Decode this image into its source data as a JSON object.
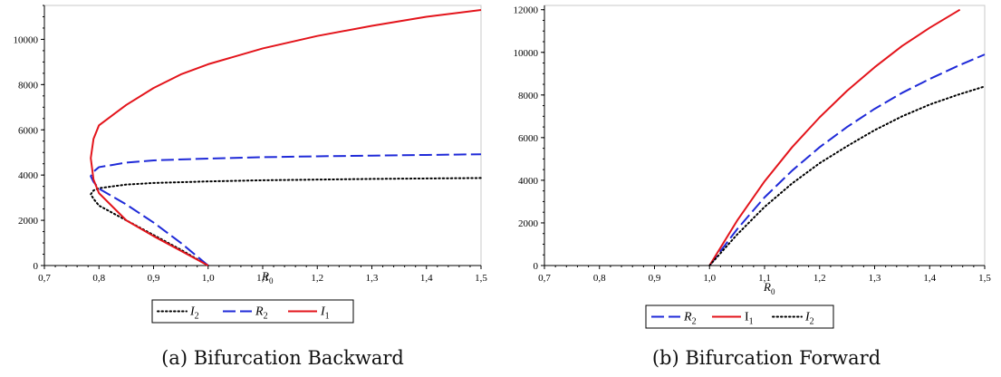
{
  "chart_data": [
    {
      "type": "line",
      "caption": "(a) Bifurcation Backward",
      "xlabel": "R",
      "xlabel_sub": "0",
      "xlim": [
        0.7,
        1.5
      ],
      "ylim": [
        0,
        11500
      ],
      "xticks": [
        0.7,
        0.8,
        0.9,
        1.0,
        1.1,
        1.2,
        1.3,
        1.4,
        1.5
      ],
      "xtick_labels": [
        "0,7",
        "0,8",
        "0,9",
        "1,0",
        "1,1",
        "1,2",
        "1,3",
        "1,4",
        "1,5"
      ],
      "yticks": [
        0,
        2000,
        4000,
        6000,
        8000,
        10000
      ],
      "ytick_labels": [
        "0",
        "2000",
        "4000",
        "6000",
        "8000",
        "10000"
      ],
      "legend": [
        {
          "base": "I",
          "sub": "2",
          "series": "I2"
        },
        {
          "base": "R",
          "sub": "2",
          "series": "R2"
        },
        {
          "base": "I",
          "sub": "1",
          "series": "I1"
        }
      ],
      "series": [
        {
          "key": "I2",
          "color": "#000000",
          "style": "dotted",
          "x": [
            1.0,
            0.95,
            0.9,
            0.85,
            0.8,
            0.79,
            0.785,
            0.79,
            0.8,
            0.85,
            0.9,
            1.0,
            1.1,
            1.2,
            1.3,
            1.4,
            1.5
          ],
          "y": [
            0,
            700,
            1350,
            2000,
            2650,
            2950,
            3150,
            3320,
            3420,
            3580,
            3650,
            3720,
            3770,
            3800,
            3830,
            3850,
            3870
          ]
        },
        {
          "key": "R2",
          "color": "#1f2ad8",
          "style": "dashed",
          "x": [
            1.0,
            0.95,
            0.9,
            0.85,
            0.8,
            0.79,
            0.785,
            0.79,
            0.8,
            0.85,
            0.9,
            1.0,
            1.1,
            1.2,
            1.3,
            1.4,
            1.5
          ],
          "y": [
            0,
            1000,
            1900,
            2700,
            3400,
            3700,
            3950,
            4150,
            4350,
            4550,
            4650,
            4730,
            4790,
            4830,
            4860,
            4890,
            4920
          ]
        },
        {
          "key": "I1",
          "color": "#e3141b",
          "style": "solid",
          "x": [
            1.0,
            0.95,
            0.9,
            0.85,
            0.8,
            0.79,
            0.785,
            0.79,
            0.8,
            0.85,
            0.9,
            0.95,
            1.0,
            1.1,
            1.2,
            1.3,
            1.4,
            1.5
          ],
          "y": [
            0,
            650,
            1300,
            2000,
            3200,
            3800,
            4750,
            5600,
            6200,
            7100,
            7850,
            8450,
            8900,
            9600,
            10150,
            10600,
            11000,
            11300
          ]
        }
      ]
    },
    {
      "type": "line",
      "caption": "(b) Bifurcation Forward",
      "xlabel": "R",
      "xlabel_sub": "0",
      "xlim": [
        0.7,
        1.5
      ],
      "ylim": [
        0,
        12200
      ],
      "xticks": [
        0.7,
        0.8,
        0.9,
        1.0,
        1.1,
        1.2,
        1.3,
        1.4,
        1.5
      ],
      "xtick_labels": [
        "0,7",
        "0,8",
        "0,9",
        "1,0",
        "1,1",
        "1,2",
        "1,3",
        "1,4",
        "1,5"
      ],
      "yticks": [
        0,
        2000,
        4000,
        6000,
        8000,
        10000,
        12000
      ],
      "ytick_labels": [
        "0",
        "2000",
        "4000",
        "6000",
        "8000",
        "10000",
        "12000"
      ],
      "legend": [
        {
          "base": "R",
          "sub": "2",
          "series": "R2"
        },
        {
          "base": "I",
          "sub": "1",
          "series": "I1"
        },
        {
          "base": "I",
          "sub": "2",
          "series": "I2"
        }
      ],
      "series": [
        {
          "key": "R2",
          "color": "#1f2ad8",
          "style": "dashed",
          "x": [
            1.0,
            1.05,
            1.1,
            1.15,
            1.2,
            1.25,
            1.3,
            1.35,
            1.4,
            1.45,
            1.5
          ],
          "y": [
            0,
            1700,
            3200,
            4450,
            5550,
            6500,
            7350,
            8100,
            8750,
            9350,
            9900
          ]
        },
        {
          "key": "I1",
          "color": "#e3141b",
          "style": "solid",
          "x": [
            1.0,
            1.05,
            1.1,
            1.15,
            1.2,
            1.25,
            1.3,
            1.35,
            1.4,
            1.455
          ],
          "y": [
            0,
            2100,
            3950,
            5550,
            6950,
            8200,
            9300,
            10300,
            11150,
            12000
          ]
        },
        {
          "key": "I2",
          "color": "#000000",
          "style": "dotted",
          "x": [
            1.0,
            1.05,
            1.1,
            1.15,
            1.2,
            1.25,
            1.3,
            1.35,
            1.4,
            1.45,
            1.5
          ],
          "y": [
            0,
            1450,
            2750,
            3850,
            4800,
            5600,
            6350,
            7000,
            7550,
            8000,
            8400
          ]
        }
      ]
    }
  ]
}
